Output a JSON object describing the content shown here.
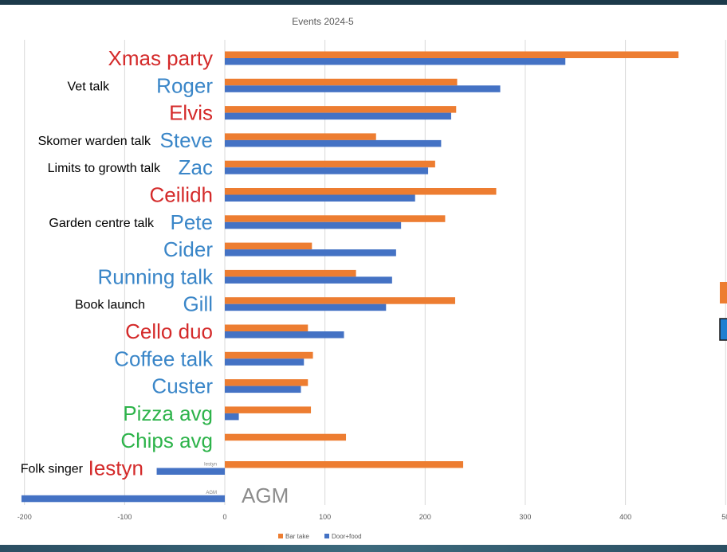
{
  "chart_data": {
    "type": "bar",
    "orientation": "horizontal",
    "title": "Events 2024-5",
    "xlim": [
      -200,
      500
    ],
    "x_ticks": [
      "-200",
      "-100",
      "0",
      "100",
      "200",
      "300",
      "400",
      "50"
    ],
    "grid": true,
    "legend_position": "bottom",
    "categories": [
      {
        "label": "Xmas party",
        "color": "#d42a2a",
        "note": ""
      },
      {
        "label": "Roger",
        "color": "#3a86c8",
        "note": "Vet talk"
      },
      {
        "label": "Elvis",
        "color": "#d42a2a",
        "note": ""
      },
      {
        "label": "Steve",
        "color": "#3a86c8",
        "note": "Skomer warden talk"
      },
      {
        "label": "Zac",
        "color": "#3a86c8",
        "note": "Limits to growth talk"
      },
      {
        "label": "Ceilidh",
        "color": "#d42a2a",
        "note": ""
      },
      {
        "label": "Pete",
        "color": "#3a86c8",
        "note": "Garden centre talk"
      },
      {
        "label": "Cider",
        "color": "#3a86c8",
        "note": ""
      },
      {
        "label": "Running talk",
        "color": "#3a86c8",
        "note": ""
      },
      {
        "label": "Gill",
        "color": "#3a86c8",
        "note": "Book launch"
      },
      {
        "label": "Cello duo",
        "color": "#d42a2a",
        "note": ""
      },
      {
        "label": "Coffee talk",
        "color": "#3a86c8",
        "note": ""
      },
      {
        "label": "Custer",
        "color": "#3a86c8",
        "note": ""
      },
      {
        "label": "Pizza avg",
        "color": "#2db34a",
        "note": ""
      },
      {
        "label": "Chips avg",
        "color": "#2db34a",
        "note": ""
      },
      {
        "label": "Iestyn",
        "color": "#d42a2a",
        "note": "Folk singer",
        "small_label": "Iestyn"
      },
      {
        "label": "AGM",
        "color": "#8c8c8c",
        "note": "",
        "small_label": "AGM"
      }
    ],
    "series": [
      {
        "name": "Bar take",
        "color": "#ed7d31",
        "values": [
          453,
          232,
          231,
          151,
          210,
          271,
          220,
          87,
          131,
          230,
          83,
          88,
          83,
          86,
          121,
          238,
          0
        ]
      },
      {
        "name": "Door+food",
        "color": "#4472c4",
        "values": [
          340,
          275,
          226,
          216,
          203,
          190,
          176,
          171,
          167,
          161,
          119,
          79,
          76,
          14,
          0,
          -68,
          -203
        ]
      }
    ]
  }
}
